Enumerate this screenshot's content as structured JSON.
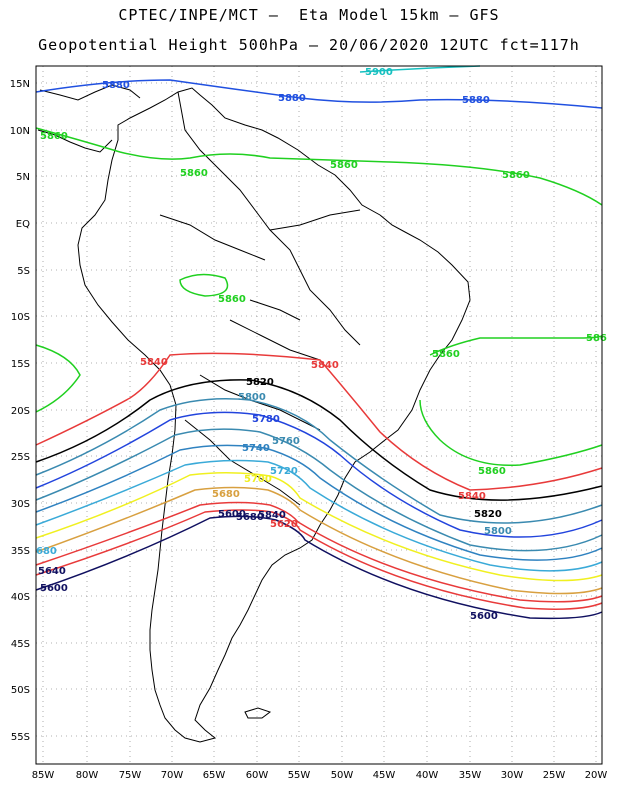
{
  "header": {
    "line1": "CPTEC/INPE/MCT –  Eta Model 15km – GFS",
    "line2": "Geopotential Height 500hPa – 20/06/2020 12UTC fct=117h"
  },
  "axes": {
    "lat_ticks": [
      "15N",
      "10N",
      "5N",
      "EQ",
      "5S",
      "10S",
      "15S",
      "20S",
      "25S",
      "30S",
      "35S",
      "40S",
      "45S",
      "50S",
      "55S"
    ],
    "lon_ticks": [
      "85W",
      "80W",
      "75W",
      "70W",
      "65W",
      "60W",
      "55W",
      "50W",
      "45W",
      "40W",
      "35W",
      "30W",
      "25W",
      "20W"
    ]
  },
  "colors": {
    "c5900": "#16c0c0",
    "c5880": "#2050e0",
    "c5860": "#20d020",
    "c5840": "#e83a3a",
    "c5820": "#000000",
    "c5800": "#3a8ab0",
    "c5780": "#2244dd",
    "c5760": "#3a8ab0",
    "c5740": "#2f82c0",
    "c5720": "#3aaad8",
    "c5700": "#f0f020",
    "c5680": "#d8a040",
    "c5660": "#e83a3a",
    "c5600": "#101060",
    "coast": "#000000"
  },
  "contour_labels": [
    {
      "text": "5900",
      "color": "c5900"
    },
    {
      "text": "5880",
      "color": "c5880"
    },
    {
      "text": "5880",
      "color": "c5880"
    },
    {
      "text": "5880",
      "color": "c5880"
    },
    {
      "text": "5860",
      "color": "c5860"
    },
    {
      "text": "5860",
      "color": "c5860"
    },
    {
      "text": "5860",
      "color": "c5860"
    },
    {
      "text": "5860",
      "color": "c5860"
    },
    {
      "text": "5860",
      "color": "c5860"
    },
    {
      "text": "5860",
      "color": "c5860"
    },
    {
      "text": "5860",
      "color": "c5860"
    },
    {
      "text": "586",
      "color": "c5860"
    },
    {
      "text": "5840",
      "color": "c5840"
    },
    {
      "text": "5840",
      "color": "c5840"
    },
    {
      "text": "5840",
      "color": "c5840"
    },
    {
      "text": "5840",
      "color": "c5600"
    },
    {
      "text": "5820",
      "color": "c5820"
    },
    {
      "text": "5820",
      "color": "c5820"
    },
    {
      "text": "5800",
      "color": "c5800"
    },
    {
      "text": "5800",
      "color": "c5800"
    },
    {
      "text": "5780",
      "color": "c5780"
    },
    {
      "text": "5760",
      "color": "c5760"
    },
    {
      "text": "5740",
      "color": "c5740"
    },
    {
      "text": "5720",
      "color": "c5720"
    },
    {
      "text": "5700",
      "color": "c5700"
    },
    {
      "text": "5680",
      "color": "c5680"
    },
    {
      "text": "5680",
      "color": "c5600"
    },
    {
      "text": "5640",
      "color": "c5600"
    },
    {
      "text": "5620",
      "color": "c5840"
    },
    {
      "text": "5600",
      "color": "c5600"
    },
    {
      "text": "5600",
      "color": "c5600"
    },
    {
      "text": "5600",
      "color": "c5600"
    },
    {
      "text": "680",
      "color": "c5720"
    }
  ]
}
